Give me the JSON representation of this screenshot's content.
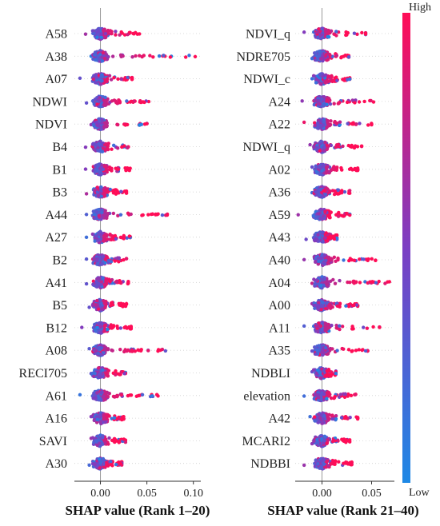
{
  "chart_data": [
    {
      "type": "scatter",
      "subtype": "shap-beeswarm",
      "xlabel": "SHAP value (Rank 1–20)",
      "x_ticks": [
        0.0,
        0.05,
        0.1
      ],
      "x_tick_labels": [
        "0.00",
        "0.05",
        "0.10"
      ],
      "xlim": [
        -0.028,
        0.108
      ],
      "features": [
        {
          "name": "A58",
          "min": -0.016,
          "max": 0.042
        },
        {
          "name": "A38",
          "min": -0.01,
          "max": 0.102
        },
        {
          "name": "A07",
          "min": -0.022,
          "max": 0.034
        },
        {
          "name": "NDWI",
          "min": -0.015,
          "max": 0.052
        },
        {
          "name": "NDVI",
          "min": -0.01,
          "max": 0.05
        },
        {
          "name": "B4",
          "min": -0.016,
          "max": 0.03
        },
        {
          "name": "B1",
          "min": -0.016,
          "max": 0.032
        },
        {
          "name": "B3",
          "min": -0.015,
          "max": 0.028
        },
        {
          "name": "A44",
          "min": -0.015,
          "max": 0.072
        },
        {
          "name": "A27",
          "min": -0.015,
          "max": 0.032
        },
        {
          "name": "B2",
          "min": -0.015,
          "max": 0.028
        },
        {
          "name": "A41",
          "min": -0.015,
          "max": 0.03
        },
        {
          "name": "B5",
          "min": -0.012,
          "max": 0.028
        },
        {
          "name": "B12",
          "min": -0.02,
          "max": 0.033
        },
        {
          "name": "A08",
          "min": -0.012,
          "max": 0.07
        },
        {
          "name": "RECI705",
          "min": -0.01,
          "max": 0.027
        },
        {
          "name": "A61",
          "min": -0.022,
          "max": 0.062
        },
        {
          "name": "A16",
          "min": -0.01,
          "max": 0.025
        },
        {
          "name": "SAVI",
          "min": -0.01,
          "max": 0.027
        },
        {
          "name": "A30",
          "min": -0.012,
          "max": 0.023
        }
      ]
    },
    {
      "type": "scatter",
      "subtype": "shap-beeswarm",
      "xlabel": "SHAP value (Rank 21–40)",
      "x_ticks": [
        0.0,
        0.05
      ],
      "x_tick_labels": [
        "0.00",
        "0.05"
      ],
      "xlim": [
        -0.027,
        0.073
      ],
      "features": [
        {
          "name": "NDVI_q",
          "min": -0.018,
          "max": 0.044
        },
        {
          "name": "NDRE705",
          "min": -0.01,
          "max": 0.027
        },
        {
          "name": "NDWI_c",
          "min": -0.01,
          "max": 0.028
        },
        {
          "name": "A24",
          "min": -0.02,
          "max": 0.052
        },
        {
          "name": "A22",
          "min": -0.018,
          "max": 0.05
        },
        {
          "name": "NDWI_q",
          "min": -0.012,
          "max": 0.04
        },
        {
          "name": "A02",
          "min": -0.01,
          "max": 0.036
        },
        {
          "name": "A36",
          "min": -0.01,
          "max": 0.028
        },
        {
          "name": "A59",
          "min": -0.024,
          "max": 0.028
        },
        {
          "name": "A43",
          "min": -0.016,
          "max": 0.015
        },
        {
          "name": "A40",
          "min": -0.018,
          "max": 0.054
        },
        {
          "name": "A04",
          "min": -0.01,
          "max": 0.068
        },
        {
          "name": "A00",
          "min": -0.01,
          "max": 0.036
        },
        {
          "name": "A11",
          "min": -0.018,
          "max": 0.058
        },
        {
          "name": "A35",
          "min": -0.01,
          "max": 0.046
        },
        {
          "name": "NDBLI",
          "min": -0.01,
          "max": 0.014
        },
        {
          "name": "elevation",
          "min": -0.018,
          "max": 0.034
        },
        {
          "name": "A42",
          "min": -0.012,
          "max": 0.036
        },
        {
          "name": "MCARI2",
          "min": -0.01,
          "max": 0.028
        },
        {
          "name": "NDBBI",
          "min": -0.018,
          "max": 0.03
        }
      ]
    }
  ],
  "colorbar": {
    "high_label": "High",
    "low_label": "Low",
    "colors": [
      "#ff0d57",
      "#7b3ec3",
      "#1e88e5"
    ]
  }
}
